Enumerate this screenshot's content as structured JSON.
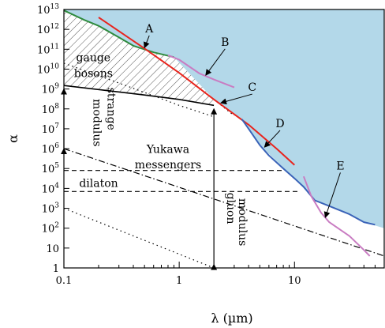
{
  "chart_data": {
    "type": "line",
    "title": "",
    "xlabel": "λ (µm)",
    "ylabel": "α",
    "xscale": "log",
    "yscale": "log",
    "xlim": [
      0.1,
      60
    ],
    "ylim": [
      1,
      10000000000000.0
    ],
    "x_ticks": [
      {
        "value": 0.1,
        "label": "0.1"
      },
      {
        "value": 1,
        "label": "1"
      },
      {
        "value": 10,
        "label": "10"
      }
    ],
    "y_ticks": [
      {
        "value": 1,
        "base": "1",
        "exp": ""
      },
      {
        "value": 10,
        "base": "10",
        "exp": ""
      },
      {
        "value": 100,
        "base": "10",
        "exp": "2"
      },
      {
        "value": 1000,
        "base": "10",
        "exp": "3"
      },
      {
        "value": 10000,
        "base": "10",
        "exp": "4"
      },
      {
        "value": 100000,
        "base": "10",
        "exp": "5"
      },
      {
        "value": 1000000,
        "base": "10",
        "exp": "6"
      },
      {
        "value": 10000000,
        "base": "10",
        "exp": "7"
      },
      {
        "value": 100000000,
        "base": "10",
        "exp": "8"
      },
      {
        "value": 1000000000,
        "base": "10",
        "exp": "9"
      },
      {
        "value": 10000000000,
        "base": "10",
        "exp": "10"
      },
      {
        "value": 100000000000,
        "base": "10",
        "exp": "11"
      },
      {
        "value": 1000000000000,
        "base": "10",
        "exp": "12"
      },
      {
        "value": 10000000000000,
        "base": "10",
        "exp": "13"
      }
    ],
    "grid": false,
    "colors": {
      "excluded_region": "#b3d8e9",
      "green": "#2e8b3e",
      "red": "#e8241d",
      "blue": "#3a63b8",
      "magenta": "#c97cc2",
      "black": "#000000"
    },
    "excluded_boundary": [
      [
        0.1,
        10000000000000.0
      ],
      [
        0.1,
        9000000000000.0
      ],
      [
        0.2,
        1500000000000.0
      ],
      [
        0.4,
        150000000000.0
      ],
      [
        0.9,
        40000000000.0
      ],
      [
        2.0,
        300000000.0
      ],
      [
        3.5,
        30000000.0
      ],
      [
        5.0,
        1500000.0
      ],
      [
        7.5,
        160000.0
      ],
      [
        10.0,
        32000.0
      ],
      [
        15.0,
        2500.0
      ],
      [
        22.0,
        1000.0
      ],
      [
        32.0,
        400.0
      ],
      [
        40.0,
        200.0
      ],
      [
        60.0,
        100.0
      ],
      [
        60.0,
        10000000000000.0
      ]
    ],
    "series": [
      {
        "name": "A",
        "color": "green",
        "dash": "solid",
        "points": [
          [
            0.1,
            9000000000000.0
          ],
          [
            0.15,
            3000000000000.0
          ],
          [
            0.2,
            1500000000000.0
          ],
          [
            0.3,
            400000000000.0
          ],
          [
            0.4,
            150000000000.0
          ],
          [
            0.6,
            70000000000.0
          ],
          [
            0.9,
            40000000000.0
          ]
        ]
      },
      {
        "name": "B",
        "color": "magenta",
        "dash": "solid",
        "points": [
          [
            0.8,
            50000000000.0
          ],
          [
            1.0,
            30000000000.0
          ],
          [
            1.5,
            6000000000.0
          ],
          [
            2.0,
            3000000000.0
          ],
          [
            3.0,
            1200000000.0
          ]
        ]
      },
      {
        "name": "C",
        "color": "red",
        "dash": "solid",
        "points": [
          [
            0.2,
            4000000000000.0
          ],
          [
            0.5,
            110000000000.0
          ],
          [
            1.0,
            6500000000.0
          ],
          [
            2.0,
            300000000.0
          ],
          [
            4.0,
            16000000.0
          ],
          [
            7.0,
            1000000.0
          ],
          [
            10.0,
            150000.0
          ]
        ]
      },
      {
        "name": "D",
        "color": "blue",
        "dash": "solid",
        "points": [
          [
            3.5,
            30000000.0
          ],
          [
            4.0,
            10000000.0
          ],
          [
            5.0,
            1500000.0
          ],
          [
            6.0,
            450000.0
          ],
          [
            8.0,
            100000.0
          ],
          [
            10.0,
            32000.0
          ],
          [
            12.0,
            12000.0
          ],
          [
            15.0,
            2500.0
          ],
          [
            20.0,
            1300.0
          ],
          [
            30.0,
            500.0
          ],
          [
            40.0,
            200.0
          ],
          [
            50.0,
            150.0
          ]
        ]
      },
      {
        "name": "E",
        "color": "magenta",
        "dash": "solid",
        "points": [
          [
            12.0,
            40000.0
          ],
          [
            14.0,
            4000.0
          ],
          [
            17.0,
            600.0
          ],
          [
            20.0,
            200.0
          ],
          [
            30.0,
            40.0
          ],
          [
            40.0,
            8
          ],
          [
            45.0,
            4
          ]
        ]
      }
    ],
    "theory_lines": [
      {
        "name": "gauge-bosons-lower-boundary",
        "dash": "solid",
        "points": [
          [
            0.1,
            1500000000.0
          ],
          [
            0.5,
            500000000.0
          ],
          [
            1.0,
            300000000.0
          ],
          [
            2.0,
            150000000.0
          ]
        ]
      },
      {
        "name": "gauge-bosons-dotted",
        "dash": "dot",
        "points": [
          [
            0.1,
            20000000000.0
          ],
          [
            0.3,
            2000000000.0
          ],
          [
            1.0,
            150000000.0
          ],
          [
            2.0,
            40000000.0
          ]
        ]
      },
      {
        "name": "gluon-dotted",
        "dash": "dot",
        "points": [
          [
            2.0,
            300000000.0
          ],
          [
            3.0,
            45000000.0
          ]
        ]
      },
      {
        "name": "lower-dotted",
        "dash": "dot",
        "points": [
          [
            0.1,
            1000.0
          ],
          [
            2.0,
            1.0
          ]
        ]
      },
      {
        "name": "dashdot",
        "dash": "dashdot",
        "points": [
          [
            0.1,
            1000000.0
          ],
          [
            60.0,
            4.0
          ]
        ]
      },
      {
        "name": "yukawa-dashed",
        "dash": "dash",
        "points": [
          [
            0.1,
            80000.0
          ],
          [
            8.0,
            80000.0
          ]
        ]
      },
      {
        "name": "dilaton-dashed",
        "dash": "dash",
        "points": [
          [
            0.1,
            7000.0
          ],
          [
            11.0,
            7000.0
          ]
        ]
      }
    ],
    "hatched_region": [
      [
        0.1,
        1500000000.0
      ],
      [
        0.1,
        9000000000000.0
      ],
      [
        0.2,
        1500000000000.0
      ],
      [
        0.4,
        150000000000.0
      ],
      [
        0.9,
        40000000000.0
      ],
      [
        2.0,
        300000000.0
      ],
      [
        2.0,
        150000000.0
      ],
      [
        1.0,
        300000000.0
      ],
      [
        0.5,
        500000000.0
      ]
    ],
    "annotations": [
      {
        "id": "gauge",
        "text": "gauge",
        "x": 0.18,
        "y": 25000000000.0
      },
      {
        "id": "bosons",
        "text": "bosons",
        "x": 0.18,
        "y": 4000000000.0
      },
      {
        "id": "strange",
        "text": "strange",
        "x": 0.24,
        "y": 100000000.0,
        "rotate": 90
      },
      {
        "id": "modulus1",
        "text": "modulus",
        "x": 0.18,
        "y": 20000000.0,
        "rotate": 90
      },
      {
        "id": "yukawa",
        "text": "Yukawa",
        "x": 0.8,
        "y": 600000.0
      },
      {
        "id": "messengers",
        "text": "messengers",
        "x": 0.8,
        "y": 100000.0
      },
      {
        "id": "dilaton",
        "text": "dilaton",
        "x": 0.2,
        "y": 12000.0
      },
      {
        "id": "gluon",
        "text": "gluon",
        "x": 2.6,
        "y": 1000.0,
        "rotate": 90
      },
      {
        "id": "modulus2",
        "text": "modulus",
        "x": 3.3,
        "y": 200.0,
        "rotate": 90
      }
    ],
    "arrows": [
      {
        "id": "strange-arrow",
        "x": 0.1,
        "y_from": 1000000.0,
        "y_to": 1000000000.0,
        "double": true
      },
      {
        "id": "gluon-arrow",
        "x": 2.0,
        "y_from": 1.5,
        "y_to": 100000000.0,
        "double": true
      }
    ],
    "curve_labels": [
      {
        "text": "A",
        "label_x": 0.55,
        "label_y": 700000000000.0,
        "target_x": 0.5,
        "target_y": 120000000000.0
      },
      {
        "text": "B",
        "label_x": 2.5,
        "label_y": 150000000000.0,
        "target_x": 1.7,
        "target_y": 5000000000.0
      },
      {
        "text": "C",
        "label_x": 4.3,
        "label_y": 800000000.0,
        "target_x": 2.3,
        "target_y": 200000000.0
      },
      {
        "text": "D",
        "label_x": 7.5,
        "label_y": 12000000.0,
        "target_x": 5.5,
        "target_y": 1200000.0
      },
      {
        "text": "E",
        "label_x": 25.0,
        "label_y": 90000.0,
        "target_x": 18.5,
        "target_y": 350.0
      }
    ]
  }
}
